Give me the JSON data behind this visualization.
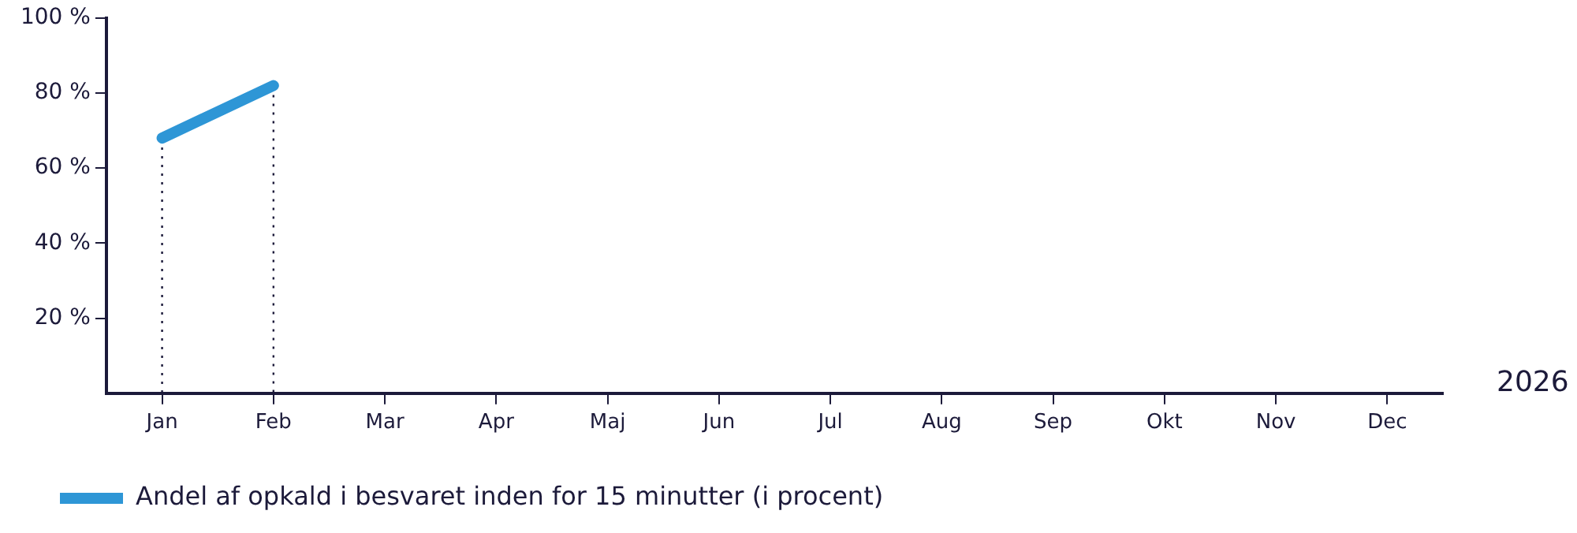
{
  "chart_data": {
    "type": "line",
    "xlabel": "2026",
    "categories": [
      "Jan",
      "Feb",
      "Mar",
      "Apr",
      "Maj",
      "Jun",
      "Jul",
      "Aug",
      "Sep",
      "Okt",
      "Nov",
      "Dec"
    ],
    "series": [
      {
        "name": "Andel af opkald i besvaret inden for 15 minutter (i procent)",
        "color": "#2e96d6",
        "values": [
          68,
          82,
          null,
          null,
          null,
          null,
          null,
          null,
          null,
          null,
          null,
          null
        ]
      }
    ],
    "ylim": [
      0,
      100
    ],
    "yticks": [
      {
        "value": 20,
        "label": "20 %"
      },
      {
        "value": 40,
        "label": "40 %"
      },
      {
        "value": 60,
        "label": "60 %"
      },
      {
        "value": 80,
        "label": "80 %"
      },
      {
        "value": 100,
        "label": "100 %"
      }
    ],
    "ref_lines": [
      {
        "axis": "x",
        "value": "Jan",
        "line_style": "dotted"
      },
      {
        "axis": "x",
        "value": "Feb",
        "line_style": "dotted"
      }
    ],
    "grid": false,
    "legend": "bottom left",
    "marker": "none",
    "line_style": "solid"
  }
}
